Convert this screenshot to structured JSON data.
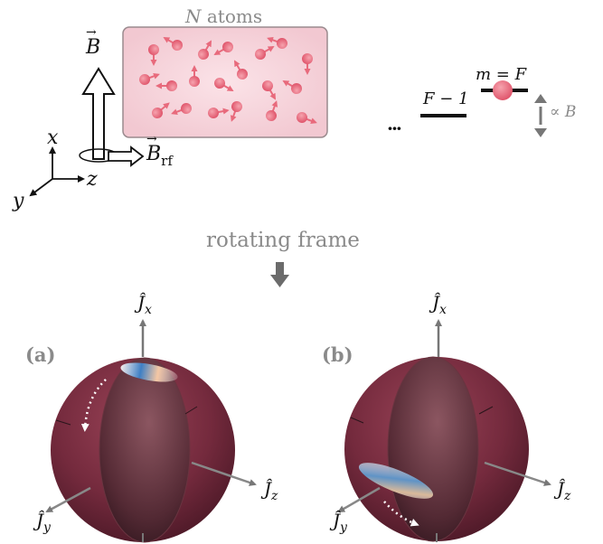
{
  "atoms_box": {
    "N_symbol": "N",
    "label": "atoms"
  },
  "field_labels": {
    "B": "B",
    "B_rf": "B",
    "rf_subscript": "rf"
  },
  "axes": {
    "x": "x",
    "y": "y",
    "z": "z"
  },
  "levels": {
    "upper": "m = F",
    "lower": "F − 1",
    "ellipsis": "···",
    "scaling": "∝ B"
  },
  "frame_label": "rotating frame",
  "panel_a": {
    "tag": "(a)",
    "Jx": "Ĵ",
    "Jx_sub": "x",
    "Jy": "Ĵ",
    "Jy_sub": "y",
    "Jz": "Ĵ",
    "Jz_sub": "z"
  },
  "panel_b": {
    "tag": "(b)",
    "Jx": "Ĵ",
    "Jx_sub": "x",
    "Jy": "Ĵ",
    "Jy_sub": "y",
    "Jz": "Ĵ",
    "Jz_sub": "z"
  },
  "colors": {
    "sphere": "#7a2b3e",
    "atom": "#e86a7c",
    "box": "#f7d8de",
    "arrow": "#6b6b6b"
  }
}
